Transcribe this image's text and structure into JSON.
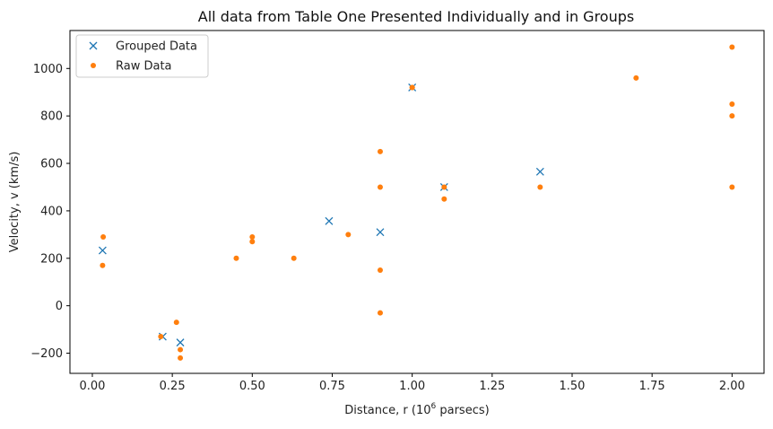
{
  "chart_data": {
    "type": "scatter",
    "title": "All data from Table One Presented Individually and in Groups",
    "xlabel_prefix": "Distance, r (10",
    "xlabel_sup": "6",
    "xlabel_suffix": " parsecs)",
    "ylabel": "Velocity, v (km/s)",
    "xlim": [
      -0.07,
      2.1
    ],
    "ylim": [
      -285,
      1160
    ],
    "x_ticks": [
      0.0,
      0.25,
      0.5,
      0.75,
      1.0,
      1.25,
      1.5,
      1.75,
      2.0
    ],
    "x_tick_labels": [
      "0.00",
      "0.25",
      "0.50",
      "0.75",
      "1.00",
      "1.25",
      "1.50",
      "1.75",
      "2.00"
    ],
    "y_ticks": [
      -200,
      0,
      200,
      400,
      600,
      800,
      1000
    ],
    "y_tick_labels": [
      "−200",
      "0",
      "200",
      "400",
      "600",
      "800",
      "1000"
    ],
    "grid": false,
    "legend_position": "top-left",
    "series": [
      {
        "name": "Grouped Data",
        "marker": "x",
        "color": "#1f77b4",
        "points": [
          [
            0.032,
            233
          ],
          [
            0.22,
            -130
          ],
          [
            0.275,
            -155
          ],
          [
            0.74,
            357
          ],
          [
            0.9,
            310
          ],
          [
            1.0,
            920
          ],
          [
            1.1,
            500
          ],
          [
            1.4,
            565
          ]
        ]
      },
      {
        "name": "Raw Data",
        "marker": "dot",
        "color": "#ff7f0e",
        "points": [
          [
            0.032,
            170
          ],
          [
            0.034,
            290
          ],
          [
            0.214,
            -130
          ],
          [
            0.263,
            -70
          ],
          [
            0.275,
            -185
          ],
          [
            0.275,
            -220
          ],
          [
            0.45,
            200
          ],
          [
            0.5,
            290
          ],
          [
            0.5,
            270
          ],
          [
            0.63,
            200
          ],
          [
            0.8,
            300
          ],
          [
            0.9,
            -30
          ],
          [
            0.9,
            650
          ],
          [
            0.9,
            150
          ],
          [
            0.9,
            500
          ],
          [
            1.0,
            920
          ],
          [
            1.0,
            920
          ],
          [
            1.1,
            450
          ],
          [
            1.1,
            500
          ],
          [
            1.4,
            500
          ],
          [
            1.7,
            960
          ],
          [
            2.0,
            500
          ],
          [
            2.0,
            850
          ],
          [
            2.0,
            800
          ],
          [
            2.0,
            1090
          ]
        ]
      }
    ]
  }
}
